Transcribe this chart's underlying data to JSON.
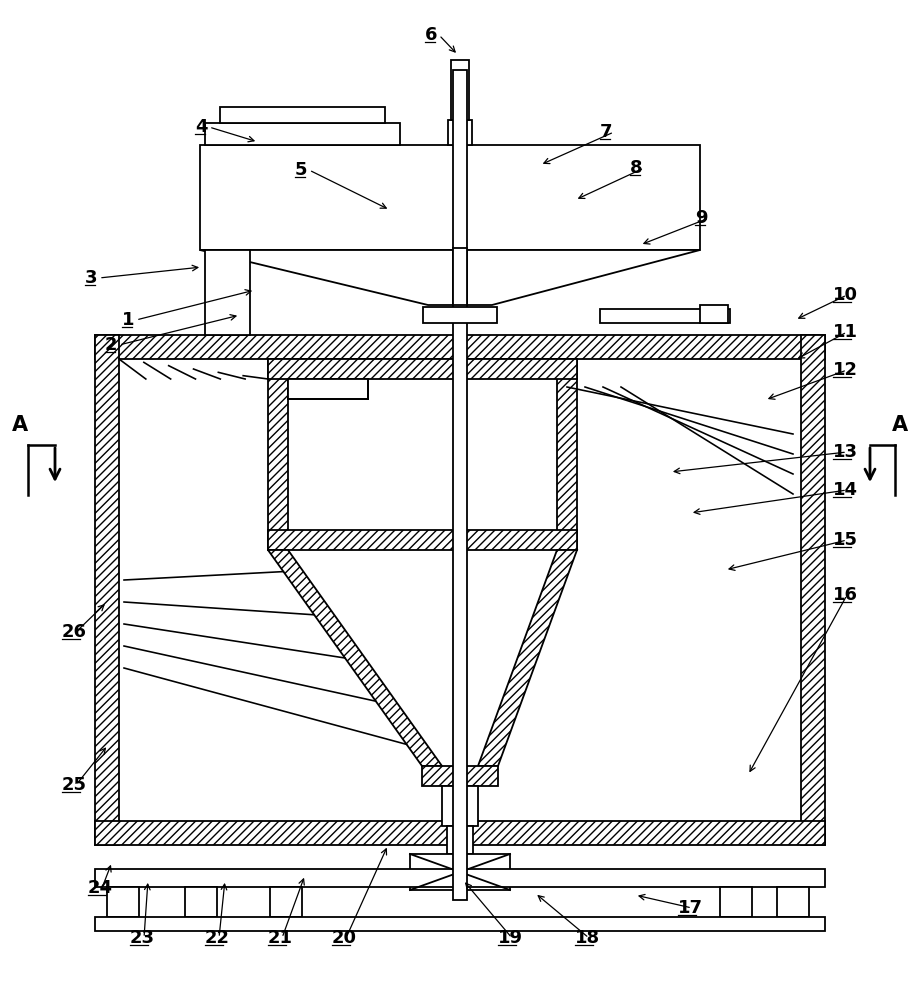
{
  "bg": "#ffffff",
  "lc": "#000000",
  "lw": 1.3,
  "fig_w": 9.18,
  "fig_h": 10.0,
  "dpi": 100
}
